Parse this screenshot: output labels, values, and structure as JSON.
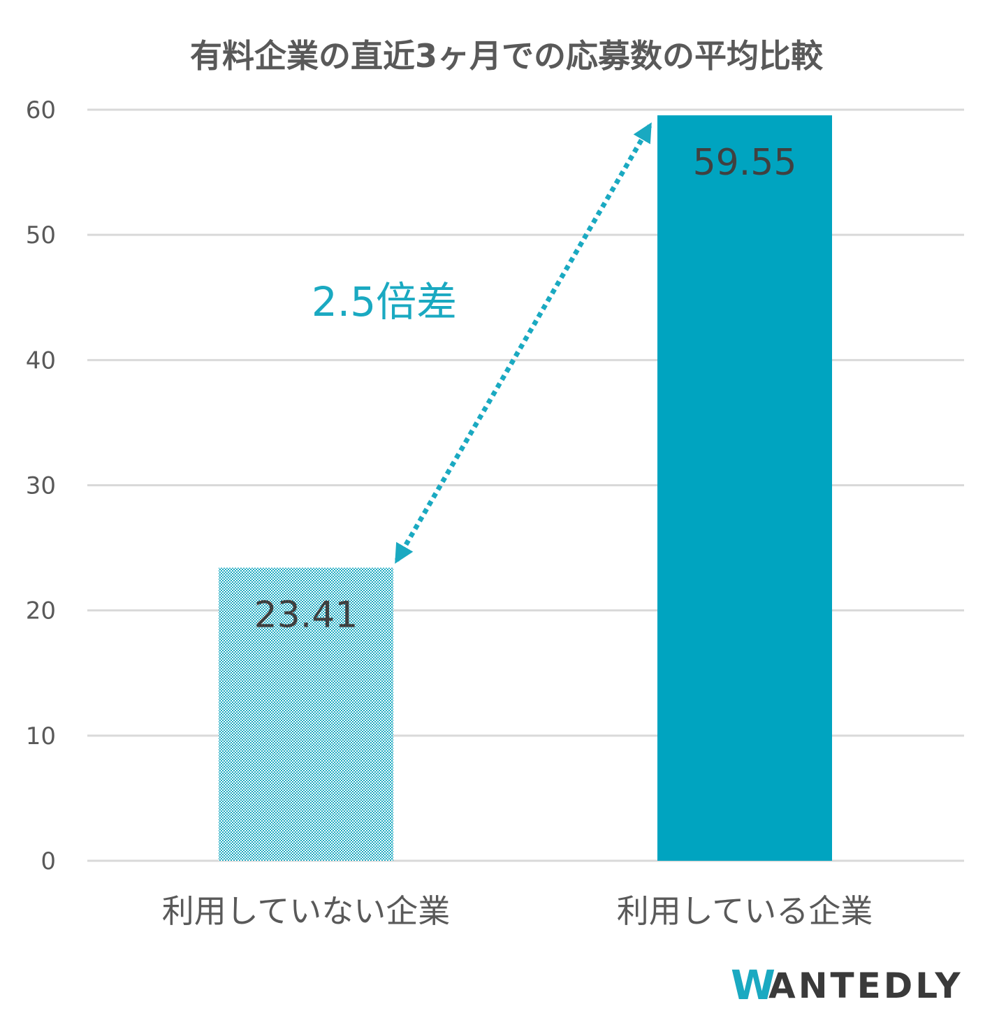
{
  "chart_data": {
    "type": "bar",
    "title": "有料企業の直近3ヶ月での応募数の平均比較",
    "categories": [
      "利用していない企業",
      "利用している企業"
    ],
    "values": [
      23.41,
      59.55
    ],
    "data_labels": [
      "23.41",
      "59.55"
    ],
    "ylim": [
      0,
      60
    ],
    "yticks": [
      0,
      10,
      20,
      30,
      40,
      50,
      60
    ],
    "ytick_labels": [
      "0",
      "10",
      "20",
      "30",
      "40",
      "50",
      "60"
    ],
    "xlabel": "",
    "ylabel": "",
    "grid": true,
    "legend": "none",
    "annotation": "2.5倍差",
    "colors": {
      "bar_hatched": "#1aa9c1",
      "bar_solid": "#00a4c0",
      "grid": "#d9d9d9",
      "arrow": "#1aa9c1"
    }
  },
  "logo": {
    "text": "WANTEDLY"
  }
}
